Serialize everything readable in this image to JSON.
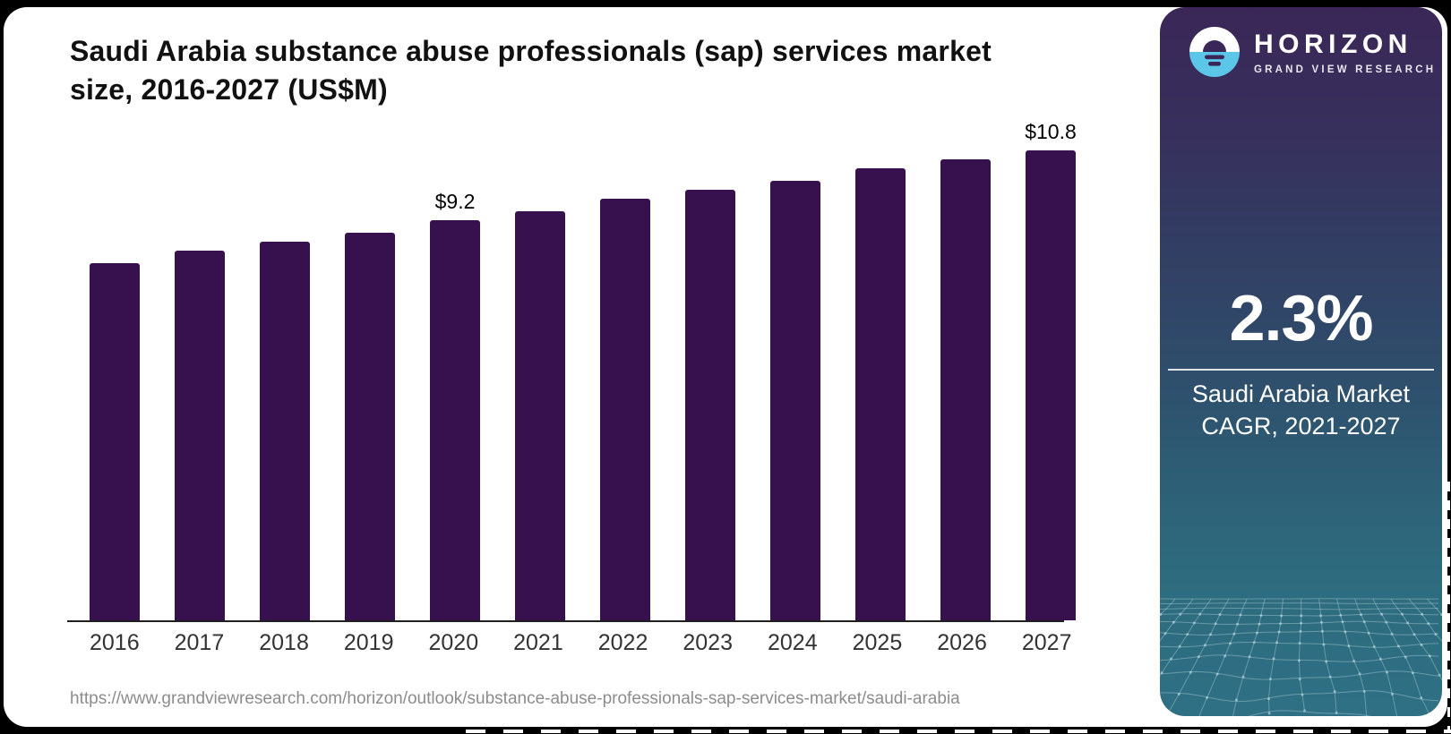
{
  "chart_data": {
    "type": "bar",
    "title": "Saudi Arabia substance abuse professionals (sap) services market size, 2016-2027 (US$M)",
    "xlabel": "",
    "ylabel": "",
    "unit": "US$M",
    "categories": [
      "2016",
      "2017",
      "2018",
      "2019",
      "2020",
      "2021",
      "2022",
      "2023",
      "2024",
      "2025",
      "2026",
      "2027"
    ],
    "values": [
      8.2,
      8.5,
      8.7,
      8.9,
      9.2,
      9.4,
      9.7,
      9.9,
      10.1,
      10.4,
      10.6,
      10.8
    ],
    "data_labels": [
      {
        "category": "2020",
        "text": "$9.2"
      },
      {
        "category": "2027",
        "text": "$10.8"
      }
    ],
    "bar_color": "#36114E",
    "ylim": [
      0,
      11.5
    ],
    "grid": false,
    "legend": null
  },
  "footer": {
    "source_url": "https://www.grandviewresearch.com/horizon/outlook/substance-abuse-professionals-sap-services-market/saudi-arabia"
  },
  "sidebar": {
    "brand": "HORIZON",
    "brand_sub": "GRAND VIEW RESEARCH",
    "stat_value": "2.3%",
    "stat_caption_line1": "Saudi Arabia Market",
    "stat_caption_line2": "CAGR, 2021-2027",
    "colors": {
      "logo_blue": "#5BC6E8",
      "panel_top": "#3A2757",
      "panel_bottom": "#2F7084",
      "divider": "#FFFFFF"
    }
  }
}
